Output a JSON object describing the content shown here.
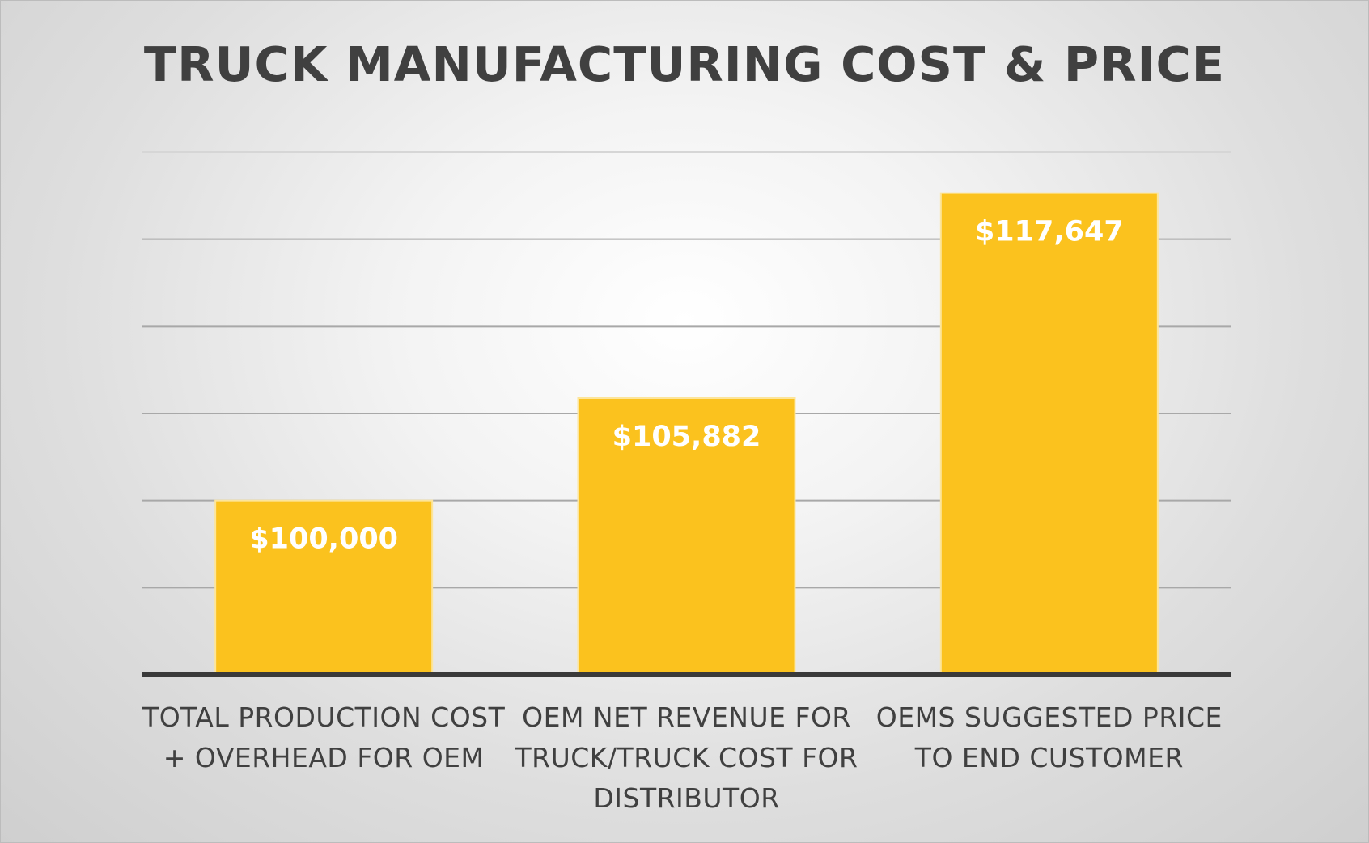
{
  "chart_data": {
    "type": "bar",
    "title": "TRUCK MANUFACTURING COST & PRICE",
    "xlabel": "",
    "ylabel": "",
    "categories": [
      [
        "TOTAL PRODUCTION COST",
        "+ OVERHEAD FOR OEM"
      ],
      [
        "OEM NET REVENUE FOR",
        "TRUCK/TRUCK COST FOR",
        "DISTRIBUTOR"
      ],
      [
        "OEMS SUGGESTED PRICE",
        "TO END CUSTOMER"
      ]
    ],
    "values": [
      100000,
      105882,
      117647
    ],
    "data_labels": [
      "$100,000",
      "$105,882",
      "$117,647"
    ],
    "ylim": [
      90000,
      120000
    ],
    "y_gridlines": [
      90000,
      95000,
      100000,
      105000,
      110000,
      115000,
      120000
    ],
    "show_y_axis_labels": false,
    "grid": true,
    "legend": "none",
    "colors": {
      "bar": "#fbc21e",
      "bar_edge": "#fde59a",
      "data_label": "#ffffff",
      "text": "#404040",
      "axis": "#3a3a3a",
      "grid": "#a8a8a8"
    }
  }
}
